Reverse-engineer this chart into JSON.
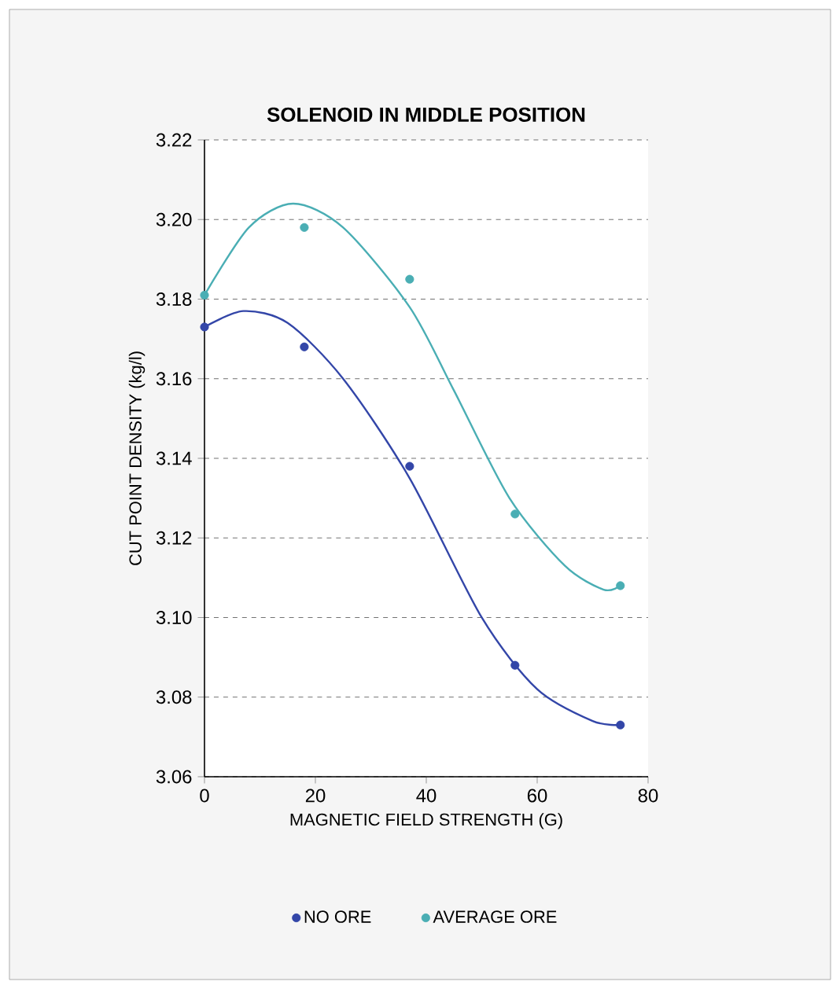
{
  "chart_data": {
    "type": "scatter",
    "title": "SOLENOID IN MIDDLE POSITION",
    "xlabel": "MAGNETIC FIELD STRENGTH (G)",
    "ylabel": "CUT POINT DENSITY (kg/l)",
    "xlim": [
      0,
      80
    ],
    "xticks": [
      0,
      20,
      40,
      60,
      80
    ],
    "ylim": [
      3.06,
      3.22
    ],
    "yticks": [
      {
        "value": 3.06,
        "label": "3.06"
      },
      {
        "value": 3.08,
        "label": "3.08"
      },
      {
        "value": 3.1,
        "label": "3.10"
      },
      {
        "value": 3.12,
        "label": "3.12"
      },
      {
        "value": 3.14,
        "label": "3.14"
      },
      {
        "value": 3.16,
        "label": "3.16"
      },
      {
        "value": 3.18,
        "label": "3.18"
      },
      {
        "value": 3.2,
        "label": "3.20"
      },
      {
        "value": 3.22,
        "label": "3.22"
      }
    ],
    "grid": "y",
    "legend": "bottom",
    "marker": "circle",
    "series": [
      {
        "name": "NO ORE",
        "color": "#3346a8",
        "x": [
          0,
          18,
          37,
          56,
          75
        ],
        "values": [
          3.173,
          3.168,
          3.138,
          3.088,
          3.073
        ]
      },
      {
        "name": "AVERAGE ORE",
        "color": "#4aaeb4",
        "x": [
          0,
          18,
          37,
          56,
          75
        ],
        "values": [
          3.181,
          3.198,
          3.185,
          3.126,
          3.108
        ]
      },
      {
        "type": "line",
        "marker": "none",
        "color": "#3346a8",
        "x": [
          0,
          7,
          15,
          25,
          37,
          50,
          60,
          70,
          75
        ],
        "values": [
          3.173,
          3.177,
          3.174,
          3.16,
          3.135,
          3.1,
          3.082,
          3.074,
          3.073
        ]
      },
      {
        "type": "line",
        "marker": "none",
        "color": "#4aaeb4",
        "x": [
          0,
          8,
          16,
          25,
          37,
          45,
          55,
          65,
          72,
          75
        ],
        "values": [
          3.181,
          3.198,
          3.204,
          3.198,
          3.178,
          3.157,
          3.13,
          3.113,
          3.107,
          3.108
        ]
      }
    ]
  }
}
